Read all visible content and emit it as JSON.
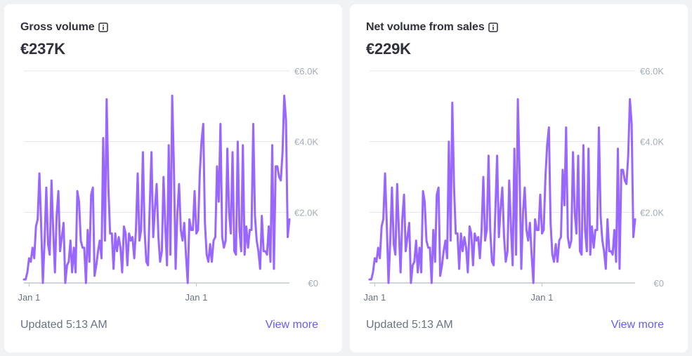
{
  "cards": [
    {
      "title": "Gross volume",
      "value": "€237K",
      "updated": "Updated 5:13 AM",
      "view_more": "View more",
      "info_icon": "info-icon"
    },
    {
      "title": "Net volume from sales",
      "value": "€229K",
      "updated": "Updated 5:13 AM",
      "view_more": "View more",
      "info_icon": "info-icon"
    }
  ],
  "colors": {
    "line": "#9966ff",
    "grid": "#e3e5e9",
    "baseline": "#c0c6d0",
    "link": "#635bff"
  },
  "chart_data": [
    {
      "type": "line",
      "title": "Gross volume",
      "y_ticks": [
        "€0",
        "€2.0K",
        "€4.0K",
        "€6.0K"
      ],
      "y_tick_values": [
        0,
        2000,
        4000,
        6000
      ],
      "x_tick_labels": [
        "Jan 1",
        "Jan 1"
      ],
      "x_tick_indices": [
        3,
        100
      ],
      "ylim": [
        0,
        6000
      ],
      "grid": true,
      "series": [
        {
          "values": [
            100,
            100,
            300,
            700,
            600,
            1000,
            700,
            1600,
            1800,
            3100,
            1700,
            0,
            1200,
            2700,
            1100,
            800,
            2900,
            1500,
            300,
            1900,
            2600,
            900,
            1300,
            1700,
            0,
            500,
            600,
            1200,
            300,
            1000,
            300,
            2600,
            2300,
            1200,
            1000,
            1000,
            0,
            1500,
            600,
            2500,
            2700,
            200,
            500,
            900,
            1200,
            700,
            4100,
            1200,
            5200,
            2700,
            1400,
            1400,
            400,
            1400,
            900,
            1300,
            1000,
            300,
            1600,
            1400,
            500,
            1400,
            1200,
            1300,
            700,
            1500,
            3100,
            1200,
            1500,
            3700,
            1500,
            600,
            500,
            2200,
            3700,
            1300,
            2100,
            2800,
            1300,
            600,
            900,
            3000,
            1600,
            500,
            3900,
            800,
            5300,
            3300,
            400,
            2000,
            2800,
            1500,
            1200,
            1700,
            800,
            0,
            1800,
            1500,
            1500,
            2600,
            1400,
            1500,
            3100,
            4000,
            4500,
            1700,
            800,
            600,
            1100,
            600,
            1200,
            1300,
            3300,
            2300,
            4500,
            1300,
            1000,
            1200,
            3800,
            2000,
            1400,
            3700,
            900,
            800,
            4000,
            1500,
            900,
            3900,
            800,
            1600,
            1000,
            1500,
            1500,
            4500,
            1900,
            1200,
            900,
            400,
            1900,
            900,
            900,
            800,
            1600,
            600,
            3900,
            400,
            3300,
            3300,
            3000,
            2900,
            3700,
            5300,
            4600,
            1300,
            1800
          ]
        }
      ]
    },
    {
      "type": "line",
      "title": "Net volume from sales",
      "y_ticks": [
        "€0",
        "€2.0K",
        "€4.0K",
        "€6.0K"
      ],
      "y_tick_values": [
        0,
        2000,
        4000,
        6000
      ],
      "x_tick_labels": [
        "Jan 1",
        "Jan 1"
      ],
      "x_tick_indices": [
        3,
        100
      ],
      "ylim": [
        0,
        6000
      ],
      "grid": true,
      "series": [
        {
          "values": [
            100,
            100,
            300,
            700,
            600,
            1000,
            700,
            1600,
            1800,
            3100,
            1700,
            0,
            1200,
            2700,
            1100,
            800,
            2800,
            1500,
            300,
            1800,
            2500,
            900,
            1300,
            1700,
            0,
            500,
            600,
            1200,
            300,
            1000,
            300,
            2600,
            2300,
            1200,
            1000,
            1000,
            0,
            1500,
            600,
            2500,
            2700,
            200,
            500,
            900,
            1200,
            700,
            4000,
            1200,
            5100,
            2700,
            1400,
            1400,
            400,
            1400,
            900,
            1300,
            1000,
            300,
            1600,
            1400,
            500,
            1400,
            1200,
            1300,
            700,
            1500,
            3000,
            1200,
            1500,
            3600,
            1500,
            600,
            500,
            2100,
            3600,
            1300,
            2100,
            2700,
            1300,
            600,
            900,
            2900,
            1600,
            500,
            3800,
            800,
            5200,
            3200,
            400,
            2000,
            2700,
            1500,
            1200,
            1700,
            800,
            0,
            1800,
            1500,
            1500,
            2500,
            1400,
            1500,
            3000,
            3900,
            4400,
            1700,
            800,
            600,
            1100,
            600,
            1200,
            1300,
            3200,
            2200,
            4400,
            1300,
            1000,
            1200,
            3700,
            2000,
            1400,
            3600,
            900,
            800,
            3900,
            1500,
            900,
            3800,
            800,
            1600,
            1000,
            1500,
            1500,
            4400,
            1900,
            1200,
            900,
            400,
            1800,
            900,
            900,
            800,
            1500,
            600,
            3800,
            400,
            3200,
            3200,
            2900,
            2800,
            3600,
            5200,
            4500,
            1300,
            1800
          ]
        }
      ]
    }
  ]
}
